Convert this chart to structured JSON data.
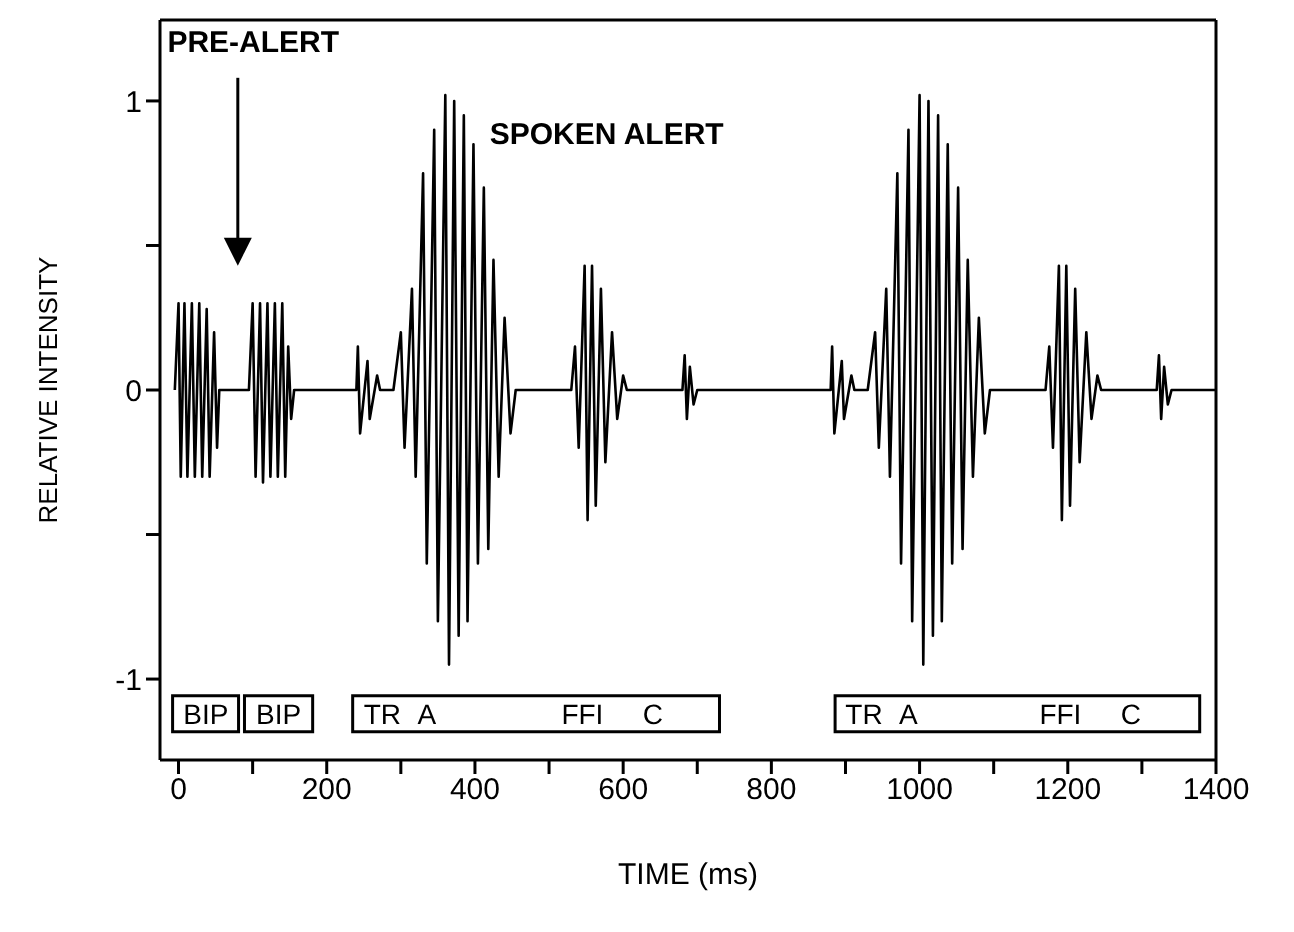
{
  "chart_data": {
    "type": "line",
    "xlabel": "TIME (ms)",
    "ylabel": "RELATIVE INTENSITY",
    "xlim": [
      -25,
      1400
    ],
    "ylim": [
      -1.28,
      1.28
    ],
    "xticks": [
      0,
      {
        "value": 100,
        "label": null
      },
      200,
      {
        "value": 300,
        "label": null
      },
      400,
      {
        "value": 500,
        "label": null
      },
      600,
      {
        "value": 700,
        "label": null
      },
      800,
      {
        "value": 900,
        "label": null
      },
      1000,
      {
        "value": 1100,
        "label": null
      },
      1200,
      {
        "value": 1300,
        "label": null
      },
      1400
    ],
    "yticks": [
      -1,
      {
        "value": -0.5,
        "label": null
      },
      0,
      {
        "value": 0.5,
        "label": null
      },
      1
    ],
    "grid": false,
    "marker": "none",
    "line_style": "solid",
    "series": [
      {
        "color": "#000000",
        "x": [
          -5,
          0,
          3,
          8,
          12,
          18,
          22,
          28,
          32,
          38,
          42,
          48,
          52,
          55,
          95,
          100,
          104,
          110,
          114,
          120,
          124,
          130,
          134,
          140,
          144,
          148,
          152,
          156,
          240,
          242,
          245,
          255,
          258,
          268,
          272,
          290,
          300,
          305,
          315,
          320,
          330,
          335,
          345,
          350,
          360,
          365,
          372,
          378,
          385,
          390,
          398,
          404,
          412,
          418,
          425,
          432,
          440,
          448,
          455,
          530,
          535,
          540,
          548,
          552,
          558,
          563,
          570,
          576,
          585,
          592,
          600,
          605,
          680,
          683,
          686,
          690,
          695,
          700,
          880,
          882,
          885,
          895,
          898,
          908,
          912,
          930,
          940,
          945,
          955,
          960,
          970,
          975,
          985,
          990,
          1000,
          1005,
          1012,
          1018,
          1025,
          1030,
          1038,
          1044,
          1052,
          1058,
          1065,
          1072,
          1080,
          1088,
          1095,
          1170,
          1175,
          1180,
          1188,
          1192,
          1198,
          1203,
          1210,
          1216,
          1225,
          1232,
          1240,
          1245,
          1320,
          1323,
          1326,
          1330,
          1335,
          1340,
          1400
        ],
        "values": [
          0,
          0.3,
          -0.3,
          0.3,
          -0.3,
          0.3,
          -0.3,
          0.3,
          -0.3,
          0.28,
          -0.3,
          0.2,
          -0.2,
          0,
          0,
          0.3,
          -0.3,
          0.3,
          -0.32,
          0.3,
          -0.3,
          0.3,
          -0.3,
          0.3,
          -0.3,
          0.15,
          -0.1,
          0,
          0,
          0.15,
          -0.15,
          0.1,
          -0.1,
          0.05,
          0,
          0,
          0.2,
          -0.2,
          0.35,
          -0.3,
          0.75,
          -0.6,
          0.9,
          -0.8,
          1.02,
          -0.95,
          1,
          -0.85,
          0.95,
          -0.8,
          0.85,
          -0.6,
          0.7,
          -0.55,
          0.45,
          -0.3,
          0.25,
          -0.15,
          0,
          0,
          0.15,
          -0.2,
          0.43,
          -0.45,
          0.43,
          -0.4,
          0.35,
          -0.25,
          0.2,
          -0.1,
          0.05,
          0,
          0,
          0.12,
          -0.1,
          0.08,
          -0.05,
          0,
          0,
          0.15,
          -0.15,
          0.1,
          -0.1,
          0.05,
          0,
          0,
          0.2,
          -0.2,
          0.35,
          -0.3,
          0.75,
          -0.6,
          0.9,
          -0.8,
          1.02,
          -0.95,
          1,
          -0.85,
          0.95,
          -0.8,
          0.85,
          -0.6,
          0.7,
          -0.55,
          0.45,
          -0.3,
          0.25,
          -0.15,
          0,
          0,
          0.15,
          -0.2,
          0.43,
          -0.45,
          0.43,
          -0.4,
          0.35,
          -0.25,
          0.2,
          -0.1,
          0.05,
          0,
          0,
          0.12,
          -0.1,
          0.08,
          -0.05,
          0,
          0
        ]
      }
    ],
    "annotations": [
      "PRE-ALERT",
      "SPOKEN ALERT",
      "BIP",
      "BIP",
      "TR",
      "A",
      "FFI",
      "C",
      "TR",
      "A",
      "FFI",
      "C"
    ]
  }
}
